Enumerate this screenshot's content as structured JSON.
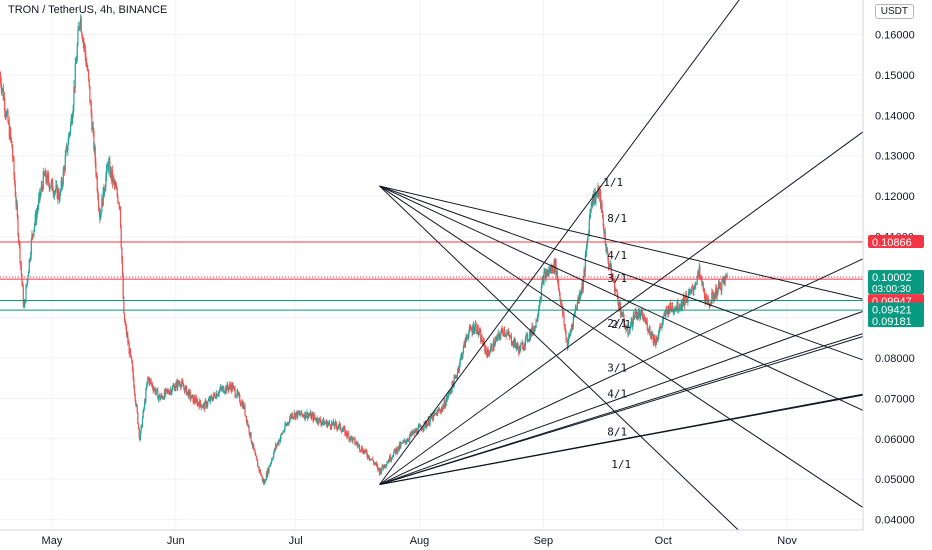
{
  "header": {
    "title": "TRON / TetherUS, 4h, BINANCE",
    "currency": "USDT"
  },
  "colors": {
    "up": "#26a69a",
    "down": "#ef5350",
    "resistance": "#f23645",
    "support": "#089981",
    "fan": "#131722",
    "axis_text": "#131722",
    "grid": "#f0f3fa"
  },
  "chart_data": {
    "type": "candlestick",
    "title": "TRON / TetherUS, 4h, BINANCE",
    "xlabel": "",
    "ylabel": "",
    "xlim": [
      "2021-04-18",
      "2021-11-20"
    ],
    "ylim": [
      0.0325,
      0.1685
    ],
    "y_tick_labels": [
      "0.16000",
      "0.15000",
      "0.14000",
      "0.13000",
      "0.12000",
      "0.11000",
      "0.10000",
      "0.09000",
      "0.08000",
      "0.07000",
      "0.06000",
      "0.05000",
      "0.04000"
    ],
    "y_ticks": [
      0.16,
      0.15,
      0.14,
      0.13,
      0.12,
      0.11,
      0.1,
      0.09,
      0.08,
      0.07,
      0.06,
      0.05,
      0.04
    ],
    "x_tick_labels": [
      "May",
      "Jun",
      "Jul",
      "Aug",
      "Sep",
      "Oct",
      "Nov"
    ],
    "x_ticks": [
      "2021-05-01",
      "2021-06-01",
      "2021-07-01",
      "2021-08-01",
      "2021-09-01",
      "2021-10-01",
      "2021-11-01"
    ],
    "price_path": [
      [
        "2021-04-18",
        0.15
      ],
      [
        "2021-04-21",
        0.132
      ],
      [
        "2021-04-24",
        0.092
      ],
      [
        "2021-04-26",
        0.11
      ],
      [
        "2021-04-29",
        0.125
      ],
      [
        "2021-05-03",
        0.12
      ],
      [
        "2021-05-06",
        0.14
      ],
      [
        "2021-05-08",
        0.165
      ],
      [
        "2021-05-10",
        0.15
      ],
      [
        "2021-05-13",
        0.115
      ],
      [
        "2021-05-15",
        0.128
      ],
      [
        "2021-05-18",
        0.118
      ],
      [
        "2021-05-19",
        0.09
      ],
      [
        "2021-05-21",
        0.078
      ],
      [
        "2021-05-23",
        0.06
      ],
      [
        "2021-05-25",
        0.075
      ],
      [
        "2021-05-28",
        0.07
      ],
      [
        "2021-06-02",
        0.074
      ],
      [
        "2021-06-05",
        0.07
      ],
      [
        "2021-06-08",
        0.068
      ],
      [
        "2021-06-12",
        0.072
      ],
      [
        "2021-06-15",
        0.073
      ],
      [
        "2021-06-18",
        0.068
      ],
      [
        "2021-06-21",
        0.055
      ],
      [
        "2021-06-23",
        0.049
      ],
      [
        "2021-06-26",
        0.058
      ],
      [
        "2021-06-30",
        0.066
      ],
      [
        "2021-07-04",
        0.066
      ],
      [
        "2021-07-08",
        0.064
      ],
      [
        "2021-07-12",
        0.063
      ],
      [
        "2021-07-16",
        0.059
      ],
      [
        "2021-07-20",
        0.055
      ],
      [
        "2021-07-22",
        0.052
      ],
      [
        "2021-07-26",
        0.057
      ],
      [
        "2021-07-30",
        0.061
      ],
      [
        "2021-08-03",
        0.064
      ],
      [
        "2021-08-07",
        0.068
      ],
      [
        "2021-08-10",
        0.075
      ],
      [
        "2021-08-13",
        0.086
      ],
      [
        "2021-08-15",
        0.088
      ],
      [
        "2021-08-18",
        0.081
      ],
      [
        "2021-08-22",
        0.087
      ],
      [
        "2021-08-26",
        0.082
      ],
      [
        "2021-08-30",
        0.088
      ],
      [
        "2021-09-01",
        0.1
      ],
      [
        "2021-09-04",
        0.103
      ],
      [
        "2021-09-07",
        0.083
      ],
      [
        "2021-09-09",
        0.092
      ],
      [
        "2021-09-11",
        0.099
      ],
      [
        "2021-09-13",
        0.119
      ],
      [
        "2021-09-15",
        0.121
      ],
      [
        "2021-09-17",
        0.105
      ],
      [
        "2021-09-20",
        0.093
      ],
      [
        "2021-09-22",
        0.086
      ],
      [
        "2021-09-24",
        0.091
      ],
      [
        "2021-09-26",
        0.09
      ],
      [
        "2021-09-29",
        0.084
      ],
      [
        "2021-10-02",
        0.092
      ],
      [
        "2021-10-05",
        0.093
      ],
      [
        "2021-10-08",
        0.096
      ],
      [
        "2021-10-10",
        0.101
      ],
      [
        "2021-10-12",
        0.093
      ],
      [
        "2021-10-14",
        0.096
      ],
      [
        "2021-10-17",
        0.1
      ]
    ],
    "horizontal_lines": [
      {
        "label": "0.10866",
        "value": 0.10866,
        "style": "resistance"
      },
      {
        "label": "0.10002",
        "value": 0.10002,
        "style": "current",
        "sublabel": "03:00:30"
      },
      {
        "label": "0.09947",
        "value": 0.09947,
        "style": "resistance"
      },
      {
        "label": "0.09421",
        "value": 0.09421,
        "style": "support"
      },
      {
        "label": "0.09181",
        "value": 0.09181,
        "style": "support"
      }
    ],
    "fan_high": {
      "origin": [
        "2021-07-22",
        0.1225
      ],
      "rays": [
        {
          "label": "1/1",
          "to": [
            "2021-10-25",
            0.0325
          ]
        },
        {
          "label": "2/1",
          "to": [
            "2021-11-20",
            0.043
          ]
        },
        {
          "label": "3/1",
          "to": [
            "2021-11-20",
            0.067
          ]
        },
        {
          "label": "4/1",
          "to": [
            "2021-11-20",
            0.0795
          ]
        },
        {
          "label": "8/1",
          "to": [
            "2021-11-20",
            0.0945
          ]
        }
      ]
    },
    "fan_low": {
      "origin": [
        "2021-07-22",
        0.0487
      ],
      "rays": [
        {
          "label": "1/1",
          "to": [
            "2021-10-20",
            0.1685
          ]
        },
        {
          "label": "8/1",
          "to": [
            "2021-11-20",
            0.1359
          ]
        },
        {
          "label": "4/1",
          "to": [
            "2021-11-20",
            0.1045
          ]
        },
        {
          "label": "3/1",
          "to": [
            "2021-11-20",
            0.0915
          ]
        },
        {
          "label": "2/1",
          "to": [
            "2021-11-20",
            0.086
          ]
        },
        {
          "label": "3/1",
          "to": [
            "2021-11-20",
            0.0853
          ]
        },
        {
          "label": "4/1",
          "to": [
            "2021-11-20",
            0.0708
          ]
        },
        {
          "label": "8/1",
          "to": [
            "2021-11-20",
            0.071
          ]
        },
        {
          "label": "1/1",
          "to": [
            "2021-11-20",
            0.071
          ]
        }
      ]
    },
    "fan_labels": [
      {
        "text": "1/1",
        "at": [
          "2021-09-16",
          0.1225
        ]
      },
      {
        "text": "8/1",
        "at": [
          "2021-09-17",
          0.1136
        ]
      },
      {
        "text": "4/1",
        "at": [
          "2021-09-17",
          0.1044
        ]
      },
      {
        "text": "3/1",
        "at": [
          "2021-09-17",
          0.0988
        ]
      },
      {
        "text": "2/1",
        "at": [
          "2021-09-17",
          0.0876
        ]
      },
      {
        "text": "2/1",
        "at": [
          "2021-09-18",
          0.0874
        ]
      },
      {
        "text": "3/1",
        "at": [
          "2021-09-17",
          0.0767
        ]
      },
      {
        "text": "4/1",
        "at": [
          "2021-09-17",
          0.0702
        ]
      },
      {
        "text": "8/1",
        "at": [
          "2021-09-17",
          0.0608
        ]
      },
      {
        "text": "1/1",
        "at": [
          "2021-09-18",
          0.0528
        ]
      }
    ]
  }
}
